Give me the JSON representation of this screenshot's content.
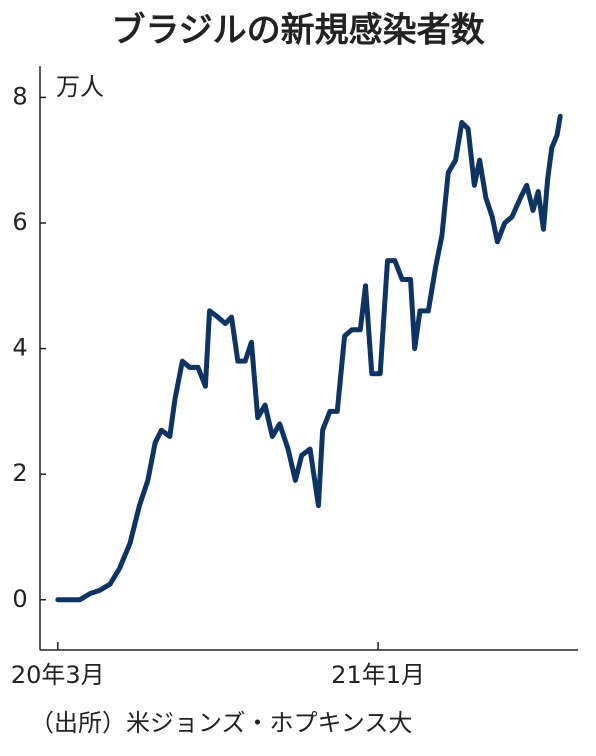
{
  "chart_data": {
    "type": "line",
    "title": "ブラジルの新規感染者数",
    "y_unit": "万人",
    "source": "（出所）米ジョンズ・ホプキンス大",
    "x": [
      0,
      21,
      31,
      40,
      50,
      59,
      69,
      78,
      86,
      93,
      99,
      107,
      112,
      119,
      126,
      134,
      141,
      145,
      153,
      160,
      166,
      172,
      179,
      185,
      191,
      198,
      205,
      212,
      220,
      227,
      233,
      241,
      249,
      253,
      260,
      267,
      274,
      281,
      289,
      294,
      300,
      308,
      315,
      322,
      329,
      337,
      341,
      346,
      354,
      361,
      367,
      373,
      380,
      386,
      392,
      398,
      403,
      409,
      415,
      420,
      427,
      434,
      442,
      448,
      454,
      459,
      464,
      468,
      472,
      477,
      480
    ],
    "series": [
      {
        "color": "#0d3462",
        "values": [
          0,
          0,
          0.1,
          0.15,
          0.25,
          0.5,
          0.9,
          1.5,
          1.9,
          2.5,
          2.7,
          2.6,
          3.2,
          3.8,
          3.7,
          3.7,
          3.4,
          4.6,
          4.5,
          4.4,
          4.5,
          3.8,
          3.8,
          4.1,
          2.9,
          3.1,
          2.6,
          2.8,
          2.4,
          1.9,
          2.3,
          2.4,
          1.5,
          2.7,
          3.0,
          3.0,
          4.2,
          4.3,
          4.3,
          5.0,
          3.6,
          3.6,
          5.4,
          5.4,
          5.1,
          5.1,
          4.0,
          4.6,
          4.6,
          5.3,
          5.8,
          6.8,
          7.0,
          7.6,
          7.5,
          6.6,
          7.0,
          6.4,
          6.1,
          5.7,
          6.0,
          6.1,
          6.4,
          6.6,
          6.2,
          6.5,
          5.9,
          6.7,
          7.2,
          7.4,
          7.7
        ]
      }
    ],
    "xlim": [
      -17,
      497
    ],
    "xticks": [
      {
        "value": 0,
        "label": "20年3月"
      },
      {
        "value": 306,
        "label": "21年1月"
      }
    ],
    "ylim": [
      -0.8,
      8.5
    ],
    "yticks": [
      0,
      2,
      4,
      6,
      8
    ]
  }
}
